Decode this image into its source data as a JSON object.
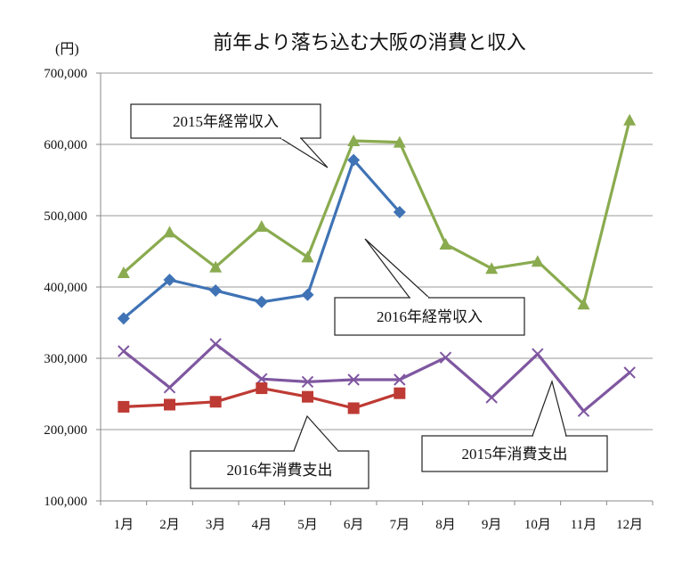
{
  "chart_data": {
    "type": "line",
    "title": "前年より落ち込む大阪の消費と収入",
    "ylabel": "",
    "y_unit": "(円)",
    "xlabel": "",
    "ylim": [
      100000,
      700000
    ],
    "y_ticks": [
      {
        "value": 100000,
        "label": "100,000"
      },
      {
        "value": 200000,
        "label": "200,000"
      },
      {
        "value": 300000,
        "label": "300,000"
      },
      {
        "value": 400000,
        "label": "400,000"
      },
      {
        "value": 500000,
        "label": "500,000"
      },
      {
        "value": 600000,
        "label": "600,000"
      },
      {
        "value": 700000,
        "label": "700,000"
      }
    ],
    "categories": [
      "1月",
      "2月",
      "3月",
      "4月",
      "5月",
      "6月",
      "7月",
      "8月",
      "9月",
      "10月",
      "11月",
      "12月"
    ],
    "grid": true,
    "legend": "callouts",
    "series": [
      {
        "name": "2015年経常収入",
        "color": "#8aab4f",
        "marker": "triangle",
        "values": [
          420000,
          477000,
          428000,
          485000,
          442000,
          605000,
          603000,
          460000,
          426000,
          436000,
          376000,
          634000
        ]
      },
      {
        "name": "2016年経常収入",
        "color": "#3f73b5",
        "marker": "diamond",
        "values": [
          356000,
          410000,
          395000,
          379000,
          389000,
          578000,
          505000,
          null,
          null,
          null,
          null,
          null
        ]
      },
      {
        "name": "2015年消費支出",
        "color": "#7f57a0",
        "marker": "x",
        "values": [
          310000,
          259000,
          320000,
          271000,
          267000,
          270000,
          270000,
          301000,
          245000,
          306000,
          226000,
          280000
        ]
      },
      {
        "name": "2016年消費支出",
        "color": "#be3a34",
        "marker": "square",
        "values": [
          232000,
          235000,
          239000,
          258000,
          246000,
          230000,
          251000,
          null,
          null,
          null,
          null,
          null
        ]
      }
    ]
  }
}
